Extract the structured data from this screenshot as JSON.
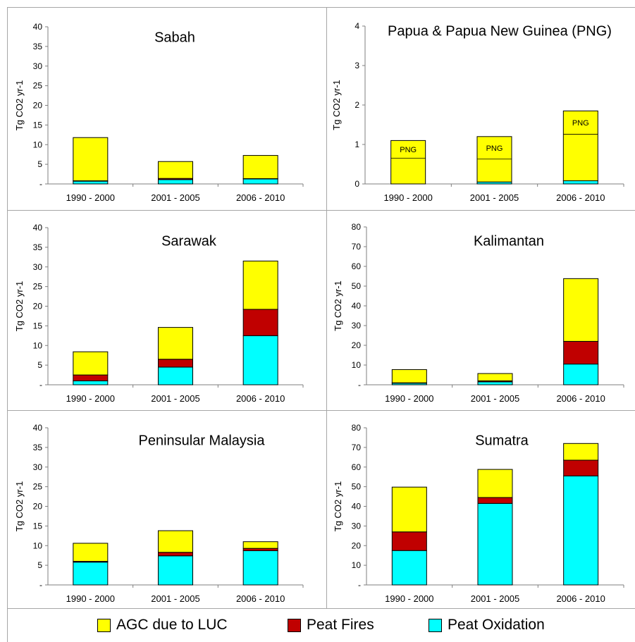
{
  "colors": {
    "agc": "#ffff00",
    "fires": "#c00000",
    "oxidation": "#00ffff",
    "axis": "#7f7f7f",
    "border": "#a6a6a6"
  },
  "legend": {
    "agc": "AGC due to LUC",
    "fires": "Peat Fires",
    "oxidation": "Peat Oxidation"
  },
  "chart_data": [
    {
      "type": "bar",
      "stacked": true,
      "title": "Sabah",
      "ylabel": "Tg CO2 yr-1",
      "ylim": [
        0,
        40
      ],
      "yticks": [
        "-",
        "5",
        "10",
        "15",
        "20",
        "25",
        "30",
        "35",
        "40"
      ],
      "categories": [
        "1990 - 2000",
        "2001 - 2005",
        "2006 - 2010"
      ],
      "series": [
        {
          "name": "Peat Oxidation",
          "values": [
            0.7,
            1.1,
            1.3
          ]
        },
        {
          "name": "Peat Fires",
          "values": [
            0.1,
            0.3,
            0.05
          ]
        },
        {
          "name": "AGC due to LUC",
          "values": [
            11.0,
            4.3,
            5.9
          ]
        }
      ]
    },
    {
      "type": "bar",
      "stacked": true,
      "title": "Papua  & Papua New Guinea (PNG)",
      "ylabel": "Tg CO2 yr-1",
      "ylim": [
        0,
        4
      ],
      "yticks": [
        "0",
        "1",
        "2",
        "3",
        "4"
      ],
      "categories": [
        "1990 - 2000",
        "2001 - 2005",
        "2006 - 2010"
      ],
      "series": [
        {
          "name": "Peat Oxidation",
          "values": [
            0.0,
            0.05,
            0.08
          ]
        },
        {
          "name": "Peat Fires",
          "values": [
            0.0,
            0.0,
            0.0
          ]
        },
        {
          "name": "AGC due to LUC",
          "values": [
            1.1,
            1.15,
            1.77
          ]
        }
      ],
      "png_divider": [
        0.65,
        0.63,
        1.26
      ],
      "annotations": [
        "PNG",
        "PNG",
        "PNG"
      ]
    },
    {
      "type": "bar",
      "stacked": true,
      "title": "Sarawak",
      "ylabel": "Tg CO2 yr-1",
      "ylim": [
        0,
        40
      ],
      "yticks": [
        "-",
        "5",
        "10",
        "15",
        "20",
        "25",
        "30",
        "35",
        "40"
      ],
      "categories": [
        "1990 - 2000",
        "2001 - 2005",
        "2006 - 2010"
      ],
      "series": [
        {
          "name": "Peat Oxidation",
          "values": [
            1.0,
            4.5,
            12.5
          ]
        },
        {
          "name": "Peat Fires",
          "values": [
            1.5,
            2.0,
            6.7
          ]
        },
        {
          "name": "AGC due to LUC",
          "values": [
            5.9,
            8.1,
            12.3
          ]
        }
      ]
    },
    {
      "type": "bar",
      "stacked": true,
      "title": "Kalimantan",
      "ylabel": "Tg CO2 yr-1",
      "ylim": [
        0,
        80
      ],
      "yticks": [
        "-",
        "10",
        "20",
        "30",
        "40",
        "50",
        "60",
        "70",
        "80"
      ],
      "categories": [
        "1990 - 2000",
        "2001 - 2005",
        "2006 - 2010"
      ],
      "series": [
        {
          "name": "Peat Oxidation",
          "values": [
            0.8,
            1.5,
            10.5
          ]
        },
        {
          "name": "Peat Fires",
          "values": [
            0.2,
            0.5,
            11.5
          ]
        },
        {
          "name": "AGC due to LUC",
          "values": [
            6.7,
            3.7,
            31.8
          ]
        }
      ]
    },
    {
      "type": "bar",
      "stacked": true,
      "title": "Peninsular  Malaysia",
      "ylabel": "Tg CO2 yr-1",
      "ylim": [
        0,
        40
      ],
      "yticks": [
        "-",
        "5",
        "10",
        "15",
        "20",
        "25",
        "30",
        "35",
        "40"
      ],
      "categories": [
        "1990 - 2000",
        "2001 - 2005",
        "2006 - 2010"
      ],
      "series": [
        {
          "name": "Peat Oxidation",
          "values": [
            5.8,
            7.4,
            8.7
          ]
        },
        {
          "name": "Peat Fires",
          "values": [
            0.2,
            0.9,
            0.6
          ]
        },
        {
          "name": "AGC due to LUC",
          "values": [
            4.6,
            5.5,
            1.7
          ]
        }
      ]
    },
    {
      "type": "bar",
      "stacked": true,
      "title": "Sumatra",
      "ylabel": "Tg CO2 yr-1",
      "ylim": [
        0,
        80
      ],
      "yticks": [
        "-",
        "10",
        "20",
        "30",
        "40",
        "50",
        "60",
        "70",
        "80"
      ],
      "categories": [
        "1990 - 2000",
        "2001 - 2005",
        "2006 - 2010"
      ],
      "series": [
        {
          "name": "Peat Oxidation",
          "values": [
            17.5,
            41.5,
            55.5
          ]
        },
        {
          "name": "Peat Fires",
          "values": [
            9.5,
            3.0,
            8.0
          ]
        },
        {
          "name": "AGC due to LUC",
          "values": [
            22.8,
            14.3,
            8.5
          ]
        }
      ]
    }
  ]
}
